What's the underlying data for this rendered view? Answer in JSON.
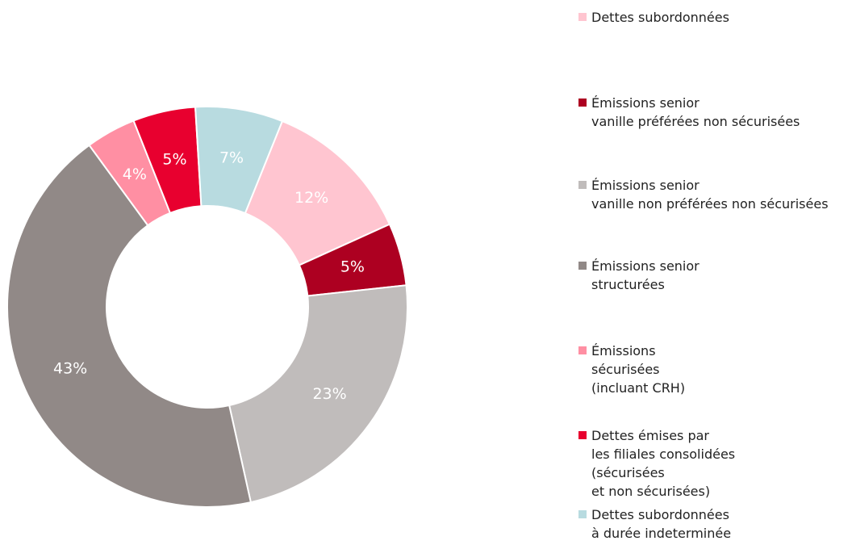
{
  "chart_data": {
    "type": "pie",
    "categories": [
      "Dettes subordonnées",
      "Émissions senior\nvanille préférées non sécurisées",
      "Émissions senior\nvanille non préférées non sécurisées",
      "Émissions senior\nstructurées",
      "Émissions\nsécurisées\n(incluant CRH)",
      "Dettes émises par\nles filiales consolidées\n(sécurisées\net non sécurisées)",
      "Dettes subordonnées\nà durée indeterminée"
    ],
    "values": [
      12,
      5,
      23,
      43,
      4,
      5,
      7
    ],
    "value_labels": [
      "12%",
      "5%",
      "23%",
      "43%",
      "4%",
      "5%",
      "7%"
    ],
    "colors": [
      "#ffc5d0",
      "#ad0021",
      "#c0bcbb",
      "#918987",
      "#ff8fa3",
      "#e8002f",
      "#b8dbe0"
    ]
  }
}
